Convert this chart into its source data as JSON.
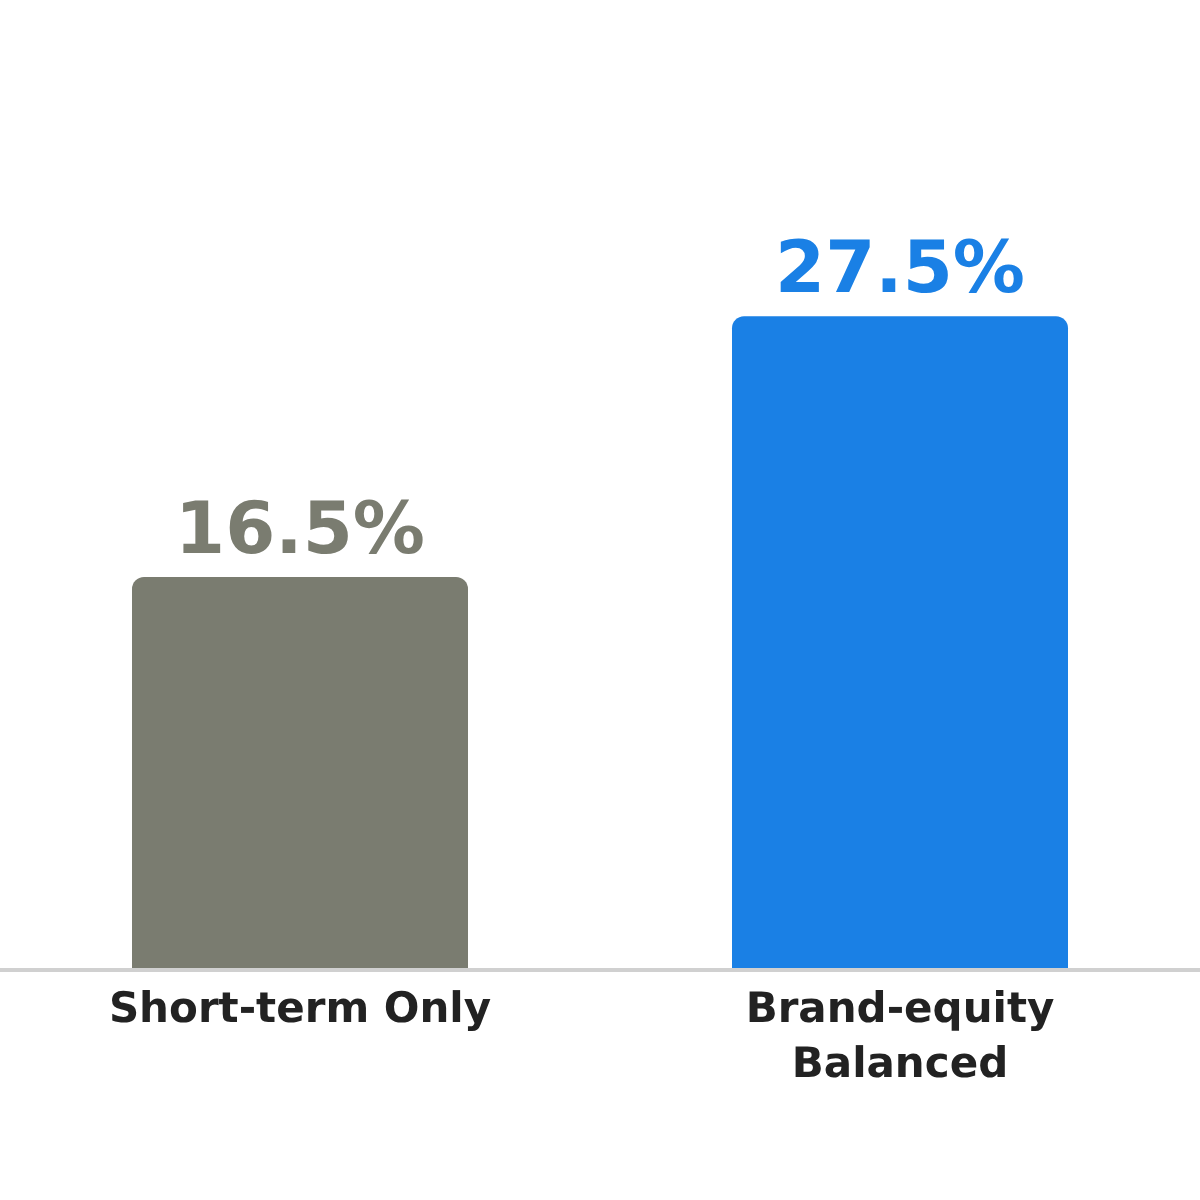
{
  "chart_data": {
    "type": "bar",
    "categories": [
      "Short-term Only",
      "Brand-equity Balanced"
    ],
    "values": [
      16.5,
      27.5
    ],
    "value_labels": [
      "16.5%",
      "27.5%"
    ],
    "colors": [
      "#7a7c70",
      "#1a80e5"
    ],
    "tick_labels": "x"
  }
}
